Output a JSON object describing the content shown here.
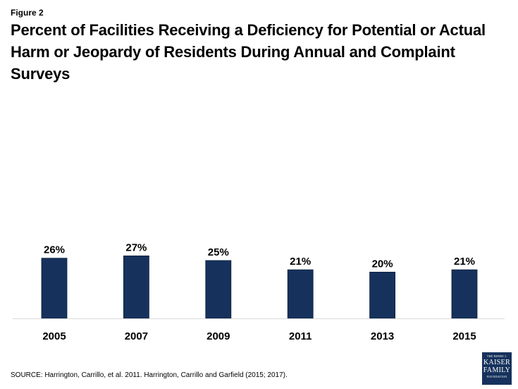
{
  "figure_label": "Figure 2",
  "source": "SOURCE: Harrington, Carrillo, et al. 2011.  Harrington, Carrillo and Garfield (2015; 2017).",
  "logo": {
    "line1": "THE HENRY J.",
    "line2": "KAISER",
    "line3": "FAMILY",
    "line4": "FOUNDATION"
  },
  "colors": {
    "bar": "#16325c",
    "axis": "#d9d9d9",
    "text": "#000000"
  },
  "chart_data": {
    "type": "bar",
    "title": "Percent of Facilities Receiving a Deficiency for Potential or Actual Harm or  Jeopardy of Residents During Annual and Complaint Surveys",
    "categories": [
      "2005",
      "2007",
      "2009",
      "2011",
      "2013",
      "2015"
    ],
    "values": [
      26,
      27,
      25,
      21,
      20,
      21
    ],
    "labels": [
      "26%",
      "27%",
      "25%",
      "21%",
      "20%",
      "21%"
    ],
    "xlabel": "",
    "ylabel": "",
    "ylim": [
      0,
      100
    ],
    "grid": false,
    "legend": "none"
  }
}
